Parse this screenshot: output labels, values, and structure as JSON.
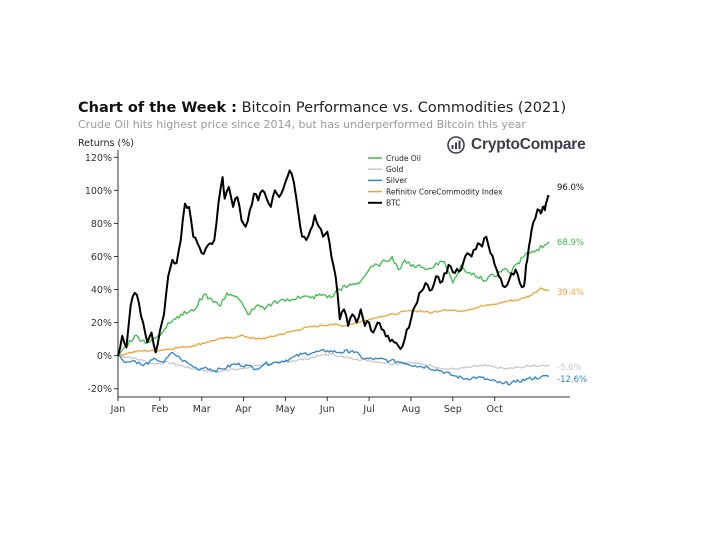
{
  "header": {
    "title_bold": "Chart of the Week :",
    "title_rest": " Bitcoin Performance vs. Commodities (2021)",
    "subtitle": "Crude Oil hits highest price since 2014, but has underperformed Bitcoin this year"
  },
  "brand": {
    "name": "CryptoCompare",
    "icon": "cryptocompare-logo-icon"
  },
  "chart_data": {
    "type": "line",
    "title": "Bitcoin Performance vs. Commodities (2021)",
    "ylabel": "Returns (%)",
    "xlabel": "",
    "x_ticks": [
      "Jan",
      "Feb",
      "Mar",
      "Apr",
      "May",
      "Jun",
      "Jul",
      "Aug",
      "Sep",
      "Oct"
    ],
    "y_ticks": [
      120,
      100,
      80,
      60,
      40,
      20,
      0,
      -20
    ],
    "y_tick_labels": [
      "120%",
      "100%",
      "80%",
      "60%",
      "40%",
      "20%",
      "0%",
      "-20%"
    ],
    "ylim": [
      -25,
      122
    ],
    "xlim": [
      0,
      10.8
    ],
    "legend_position": "top-center",
    "series": [
      {
        "name": "Crude Oil",
        "color": "#3dbb4b",
        "end_label": "68.9%",
        "end_value": 68.9,
        "points": [
          [
            0,
            0
          ],
          [
            0.15,
            5
          ],
          [
            0.4,
            12
          ],
          [
            0.7,
            8
          ],
          [
            1,
            12
          ],
          [
            1.2,
            20
          ],
          [
            1.5,
            25
          ],
          [
            1.8,
            27
          ],
          [
            2.05,
            37
          ],
          [
            2.2,
            35
          ],
          [
            2.45,
            30
          ],
          [
            2.6,
            38
          ],
          [
            2.8,
            36
          ],
          [
            3,
            30
          ],
          [
            3.1,
            25
          ],
          [
            3.3,
            30
          ],
          [
            3.5,
            28
          ],
          [
            3.7,
            32
          ],
          [
            3.9,
            34
          ],
          [
            4.1,
            33
          ],
          [
            4.3,
            36
          ],
          [
            4.6,
            35
          ],
          [
            4.9,
            37
          ],
          [
            5.1,
            35
          ],
          [
            5.25,
            40
          ],
          [
            5.5,
            42
          ],
          [
            5.8,
            45
          ],
          [
            6,
            52
          ],
          [
            6.2,
            55
          ],
          [
            6.4,
            57
          ],
          [
            6.55,
            60
          ],
          [
            6.7,
            52
          ],
          [
            6.85,
            58
          ],
          [
            7,
            54
          ],
          [
            7.2,
            55
          ],
          [
            7.35,
            52
          ],
          [
            7.5,
            53
          ],
          [
            7.6,
            56
          ],
          [
            7.8,
            57
          ],
          [
            8,
            44
          ],
          [
            8.2,
            55
          ],
          [
            8.35,
            50
          ],
          [
            8.5,
            50
          ],
          [
            8.75,
            45
          ],
          [
            8.9,
            49
          ],
          [
            9.05,
            48
          ],
          [
            9.2,
            52
          ],
          [
            9.35,
            50
          ],
          [
            9.55,
            56
          ],
          [
            9.8,
            62
          ],
          [
            10,
            64
          ],
          [
            10.2,
            67
          ],
          [
            10.3,
            68.9
          ]
        ]
      },
      {
        "name": "Gold",
        "color": "#c9c9c9",
        "end_label": "-5.6%",
        "end_value": -5.6,
        "points": [
          [
            0,
            0
          ],
          [
            0.3,
            -1
          ],
          [
            0.6,
            -3
          ],
          [
            0.9,
            -5
          ],
          [
            1.2,
            -4
          ],
          [
            1.5,
            -6
          ],
          [
            1.8,
            -8
          ],
          [
            2.1,
            -9
          ],
          [
            2.4,
            -10
          ],
          [
            2.7,
            -8
          ],
          [
            3,
            -8
          ],
          [
            3.3,
            -6
          ],
          [
            3.6,
            -5
          ],
          [
            3.9,
            -4
          ],
          [
            4.2,
            -3
          ],
          [
            4.5,
            -2
          ],
          [
            4.8,
            0
          ],
          [
            5.1,
            1
          ],
          [
            5.4,
            -1
          ],
          [
            5.7,
            -2
          ],
          [
            6,
            -3
          ],
          [
            6.3,
            -4
          ],
          [
            6.6,
            -5
          ],
          [
            6.9,
            -4
          ],
          [
            7.2,
            -5
          ],
          [
            7.5,
            -6
          ],
          [
            7.8,
            -8
          ],
          [
            8.1,
            -8
          ],
          [
            8.4,
            -7
          ],
          [
            8.7,
            -6
          ],
          [
            9,
            -7
          ],
          [
            9.3,
            -8
          ],
          [
            9.6,
            -7
          ],
          [
            9.9,
            -6
          ],
          [
            10.1,
            -6
          ],
          [
            10.3,
            -5.6
          ]
        ]
      },
      {
        "name": "Silver",
        "color": "#2f86c9",
        "end_label": "-12.6%",
        "end_value": -12.6,
        "points": [
          [
            0,
            0
          ],
          [
            0.2,
            -4
          ],
          [
            0.4,
            -3
          ],
          [
            0.6,
            -6
          ],
          [
            0.9,
            -2
          ],
          [
            1.1,
            -4
          ],
          [
            1.3,
            2
          ],
          [
            1.5,
            -2
          ],
          [
            1.7,
            -5
          ],
          [
            1.9,
            -8
          ],
          [
            2.1,
            -7
          ],
          [
            2.3,
            -9
          ],
          [
            2.5,
            -8
          ],
          [
            2.8,
            -5
          ],
          [
            3.1,
            -6
          ],
          [
            3.3,
            -8
          ],
          [
            3.5,
            -5
          ],
          [
            3.8,
            -4
          ],
          [
            4.1,
            -2
          ],
          [
            4.4,
            1
          ],
          [
            4.7,
            2
          ],
          [
            5,
            3
          ],
          [
            5.3,
            2
          ],
          [
            5.6,
            3
          ],
          [
            5.9,
            -2
          ],
          [
            6.2,
            -2
          ],
          [
            6.5,
            -3
          ],
          [
            6.8,
            -4
          ],
          [
            7.1,
            -6
          ],
          [
            7.4,
            -7
          ],
          [
            7.7,
            -9
          ],
          [
            8,
            -12
          ],
          [
            8.3,
            -14
          ],
          [
            8.6,
            -13
          ],
          [
            8.9,
            -15
          ],
          [
            9.2,
            -17
          ],
          [
            9.5,
            -16
          ],
          [
            9.8,
            -14
          ],
          [
            10.1,
            -13
          ],
          [
            10.3,
            -12.6
          ]
        ]
      },
      {
        "name": "Refinitiv CoreCommodity Index",
        "color": "#f2a233",
        "end_label": "39.4%",
        "end_value": 39.4,
        "points": [
          [
            0,
            0
          ],
          [
            0.3,
            2
          ],
          [
            0.6,
            3
          ],
          [
            0.9,
            3
          ],
          [
            1.2,
            4
          ],
          [
            1.5,
            5
          ],
          [
            1.8,
            6
          ],
          [
            2.1,
            8
          ],
          [
            2.4,
            10
          ],
          [
            2.7,
            11
          ],
          [
            3,
            12
          ],
          [
            3.3,
            10
          ],
          [
            3.6,
            11
          ],
          [
            3.9,
            13
          ],
          [
            4.2,
            15
          ],
          [
            4.5,
            17
          ],
          [
            4.8,
            18
          ],
          [
            5.1,
            19
          ],
          [
            5.4,
            18
          ],
          [
            5.7,
            20
          ],
          [
            6,
            22
          ],
          [
            6.3,
            24
          ],
          [
            6.6,
            25
          ],
          [
            6.9,
            27
          ],
          [
            7.2,
            27
          ],
          [
            7.5,
            26
          ],
          [
            7.8,
            28
          ],
          [
            8.1,
            27
          ],
          [
            8.4,
            28
          ],
          [
            8.7,
            30
          ],
          [
            9,
            31
          ],
          [
            9.3,
            33
          ],
          [
            9.6,
            34
          ],
          [
            9.9,
            37
          ],
          [
            10.1,
            41
          ],
          [
            10.3,
            39.4
          ]
        ]
      },
      {
        "name": "BTC",
        "color": "#000000",
        "end_label": "96.0%",
        "end_value": 96.0,
        "points": [
          [
            0,
            0
          ],
          [
            0.1,
            12
          ],
          [
            0.2,
            5
          ],
          [
            0.3,
            30
          ],
          [
            0.4,
            38
          ],
          [
            0.5,
            32
          ],
          [
            0.6,
            20
          ],
          [
            0.7,
            8
          ],
          [
            0.8,
            14
          ],
          [
            0.9,
            2
          ],
          [
            1,
            15
          ],
          [
            1.1,
            25
          ],
          [
            1.2,
            48
          ],
          [
            1.3,
            58
          ],
          [
            1.4,
            56
          ],
          [
            1.5,
            70
          ],
          [
            1.6,
            92
          ],
          [
            1.7,
            90
          ],
          [
            1.8,
            72
          ],
          [
            1.9,
            68
          ],
          [
            2,
            62
          ],
          [
            2.1,
            65
          ],
          [
            2.2,
            68
          ],
          [
            2.3,
            70
          ],
          [
            2.4,
            92
          ],
          [
            2.5,
            108
          ],
          [
            2.55,
            95
          ],
          [
            2.65,
            102
          ],
          [
            2.75,
            90
          ],
          [
            2.85,
            96
          ],
          [
            2.95,
            82
          ],
          [
            3.05,
            78
          ],
          [
            3.15,
            88
          ],
          [
            3.25,
            98
          ],
          [
            3.35,
            94
          ],
          [
            3.45,
            100
          ],
          [
            3.55,
            95
          ],
          [
            3.65,
            90
          ],
          [
            3.75,
            100
          ],
          [
            3.85,
            96
          ],
          [
            4,
            105
          ],
          [
            4.1,
            112
          ],
          [
            4.2,
            105
          ],
          [
            4.3,
            88
          ],
          [
            4.4,
            72
          ],
          [
            4.5,
            70
          ],
          [
            4.6,
            76
          ],
          [
            4.7,
            85
          ],
          [
            4.8,
            78
          ],
          [
            4.9,
            72
          ],
          [
            5,
            75
          ],
          [
            5.1,
            60
          ],
          [
            5.2,
            48
          ],
          [
            5.3,
            22
          ],
          [
            5.4,
            28
          ],
          [
            5.5,
            18
          ],
          [
            5.6,
            25
          ],
          [
            5.7,
            20
          ],
          [
            5.8,
            28
          ],
          [
            5.9,
            18
          ],
          [
            6,
            20
          ],
          [
            6.1,
            14
          ],
          [
            6.2,
            20
          ],
          [
            6.3,
            16
          ],
          [
            6.45,
            12
          ],
          [
            6.6,
            8
          ],
          [
            6.75,
            4
          ],
          [
            6.85,
            10
          ],
          [
            7,
            22
          ],
          [
            7.1,
            30
          ],
          [
            7.2,
            38
          ],
          [
            7.35,
            44
          ],
          [
            7.5,
            40
          ],
          [
            7.6,
            48
          ],
          [
            7.75,
            45
          ],
          [
            7.9,
            55
          ],
          [
            8.05,
            50
          ],
          [
            8.2,
            52
          ],
          [
            8.35,
            62
          ],
          [
            8.45,
            60
          ],
          [
            8.6,
            68
          ],
          [
            8.7,
            66
          ],
          [
            8.8,
            72
          ],
          [
            8.9,
            62
          ],
          [
            9,
            55
          ],
          [
            9.1,
            48
          ],
          [
            9.2,
            42
          ],
          [
            9.35,
            46
          ],
          [
            9.5,
            52
          ],
          [
            9.6,
            44
          ],
          [
            9.7,
            42
          ],
          [
            9.75,
            55
          ],
          [
            9.8,
            62
          ],
          [
            9.85,
            70
          ],
          [
            9.9,
            78
          ],
          [
            9.95,
            82
          ],
          [
            10,
            86
          ],
          [
            10.05,
            88
          ],
          [
            10.1,
            86
          ],
          [
            10.15,
            90
          ],
          [
            10.2,
            88
          ],
          [
            10.25,
            94
          ],
          [
            10.3,
            96
          ]
        ]
      }
    ]
  }
}
